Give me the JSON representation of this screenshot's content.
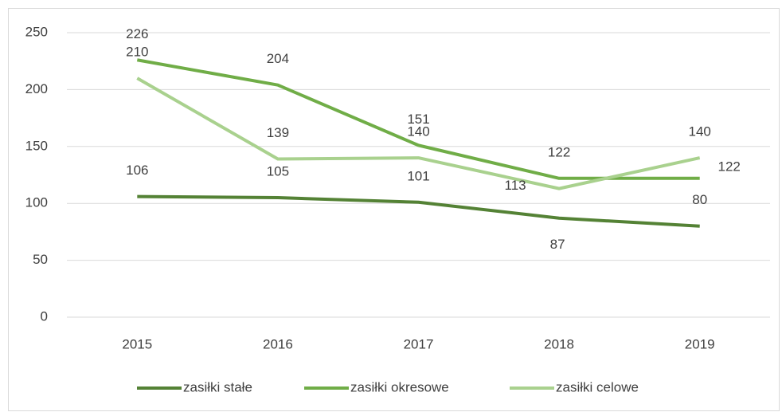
{
  "chart_data": {
    "type": "line",
    "categories": [
      "2015",
      "2016",
      "2017",
      "2018",
      "2019"
    ],
    "series": [
      {
        "name": "zasiłki stałe",
        "color": "#548235",
        "values": [
          106,
          105,
          101,
          87,
          80
        ]
      },
      {
        "name": "zasiłki okresowe",
        "color": "#70ad47",
        "values": [
          226,
          204,
          151,
          122,
          122
        ]
      },
      {
        "name": "zasiłki celowe",
        "color": "#a9d18e",
        "values": [
          210,
          139,
          140,
          113,
          140
        ]
      }
    ],
    "ylim": [
      0,
      250
    ],
    "yticks": [
      0,
      50,
      100,
      150,
      200,
      250
    ],
    "grid": true,
    "legend": "bottom"
  }
}
